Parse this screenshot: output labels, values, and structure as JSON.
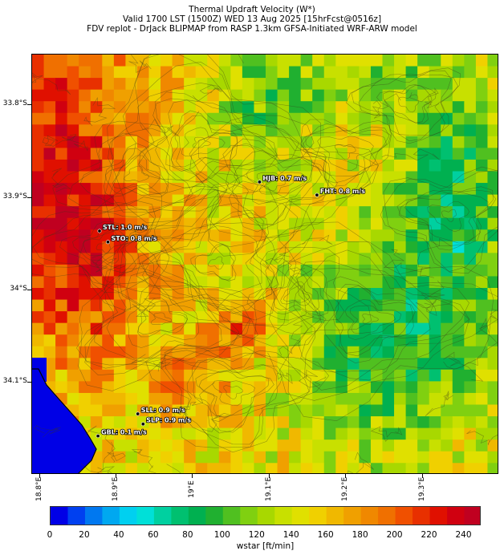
{
  "header": {
    "line1": "Thermal Updraft Velocity (W*)",
    "line2": "Valid 1700 LST (1500Z) WED 13 Aug 2025 [15hrFcst@0516z]",
    "line3": "FDV replot - DrJack BLIPMAP from RASP 1.3km GFSA-Initiated WRF-ARW model"
  },
  "axes": {
    "y_ticks": [
      {
        "label": "33.8°S",
        "lat": 33.8
      },
      {
        "label": "33.9°S",
        "lat": 33.9
      },
      {
        "label": "34°S",
        "lat": 34.0
      },
      {
        "label": "34.1°S",
        "lat": 34.1
      }
    ],
    "x_ticks": [
      {
        "label": "18.8°E",
        "lon": 18.8
      },
      {
        "label": "18.9°E",
        "lon": 18.9
      },
      {
        "label": "19°E",
        "lon": 19.0
      },
      {
        "label": "19.1°E",
        "lon": 19.1
      },
      {
        "label": "19.2°E",
        "lon": 19.2
      },
      {
        "label": "19.3°E",
        "lon": 19.3
      }
    ]
  },
  "stations": [
    {
      "id": "HJB",
      "label": "HJB: 0.7 m/s",
      "lat": 33.883,
      "lon": 19.087,
      "value_ms": 0.7
    },
    {
      "id": "FHT",
      "label": "FHT: 0.8 m/s",
      "lat": 33.897,
      "lon": 19.162,
      "value_ms": 0.8
    },
    {
      "id": "STL",
      "label": "STL: 1.0 m/s",
      "lat": 33.936,
      "lon": 18.878,
      "value_ms": 1.0
    },
    {
      "id": "STO",
      "label": "STO: 0.8 m/s",
      "lat": 33.948,
      "lon": 18.889,
      "value_ms": 0.8
    },
    {
      "id": "SLL",
      "label": "SLL: 0.9 m/s",
      "lat": 34.134,
      "lon": 18.928,
      "value_ms": 0.9
    },
    {
      "id": "SLP",
      "label": "SLP: 0.9 m/s",
      "lat": 34.145,
      "lon": 18.935,
      "value_ms": 0.9
    },
    {
      "id": "GBL",
      "label": "GBL: 0.1 m/s",
      "lat": 34.158,
      "lon": 18.876,
      "value_ms": 0.1
    }
  ],
  "colorbar": {
    "label": "wstar [ft/min]",
    "min": 0,
    "max": 250,
    "tick_labels": [
      "0",
      "20",
      "40",
      "60",
      "80",
      "100",
      "120",
      "140",
      "160",
      "180",
      "200",
      "220",
      "240"
    ],
    "colors": [
      "#0000e6",
      "#0040f0",
      "#0078f0",
      "#00a8f0",
      "#00d0f0",
      "#00e0d8",
      "#00d0a0",
      "#00c070",
      "#00b050",
      "#20b030",
      "#50c020",
      "#80d010",
      "#a8d800",
      "#c8e000",
      "#e0e000",
      "#f0d000",
      "#f0b800",
      "#f0a000",
      "#f08800",
      "#f07000",
      "#f05000",
      "#e83000",
      "#e01000",
      "#d00010",
      "#c00020"
    ]
  },
  "chart_data": {
    "type": "heatmap",
    "title": "Thermal Updraft Velocity (W*)",
    "xlabel": "",
    "ylabel": "",
    "colorbar_label": "wstar [ft/min]",
    "x_range_lon": [
      18.79,
      19.4
    ],
    "y_range_lat": [
      34.2,
      33.745
    ],
    "color_range": [
      0,
      250
    ]
  }
}
